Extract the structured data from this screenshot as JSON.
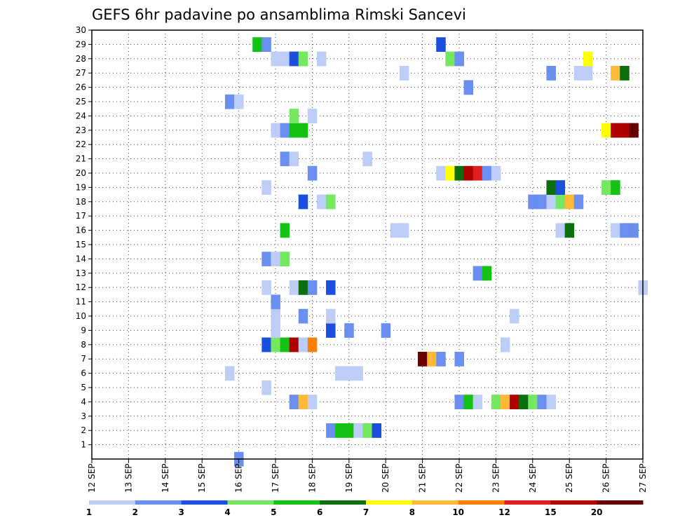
{
  "chart_data": {
    "type": "heatmap",
    "title": "GEFS 6hr padavine po ansamblima Rimski Sancevi",
    "xlabel": "",
    "ylabel": "",
    "x_ticks": [
      "12 SEP",
      "13 SEP",
      "14 SEP",
      "15 SEP",
      "16 SEP",
      "17 SEP",
      "18 SEP",
      "19 SEP",
      "20 SEP",
      "21 SEP",
      "22 SEP",
      "23 SEP",
      "24 SEP",
      "25 SEP",
      "26 SEP",
      "27 SEP"
    ],
    "xlim": [
      12,
      27
    ],
    "x_unit": "day (SEP), 6-hourly steps",
    "y_ticks": [
      1,
      2,
      3,
      4,
      5,
      6,
      7,
      8,
      9,
      10,
      11,
      12,
      13,
      14,
      15,
      16,
      17,
      18,
      19,
      20,
      21,
      22,
      23,
      24,
      25,
      26,
      27,
      28,
      29,
      30
    ],
    "ylim": [
      0,
      30
    ],
    "grid": true,
    "colorbar": {
      "placement": "bottom",
      "boundaries": [
        "1",
        "2",
        "3",
        "4",
        "5",
        "6",
        "7",
        "8",
        "10",
        "12",
        "15",
        "20",
        ""
      ],
      "colors": [
        "#bdcdf7",
        "#6a8ff0",
        "#1c4fe0",
        "#73e860",
        "#14c214",
        "#0d6e0d",
        "#ffff00",
        "#ffb838",
        "#ff8000",
        "#e02020",
        "#b00000",
        "#680000"
      ]
    },
    "cells": [
      {
        "x": 16.0,
        "y": 0,
        "c": 1
      },
      {
        "x": 18.5,
        "y": 2,
        "c": 1
      },
      {
        "x": 18.75,
        "y": 2,
        "c": 4
      },
      {
        "x": 19.0,
        "y": 2,
        "c": 4
      },
      {
        "x": 19.25,
        "y": 2,
        "c": 0
      },
      {
        "x": 19.5,
        "y": 2,
        "c": 3
      },
      {
        "x": 19.75,
        "y": 2,
        "c": 2
      },
      {
        "x": 17.5,
        "y": 4,
        "c": 1
      },
      {
        "x": 17.75,
        "y": 4,
        "c": 7
      },
      {
        "x": 18.0,
        "y": 4,
        "c": 0
      },
      {
        "x": 22.0,
        "y": 4,
        "c": 1
      },
      {
        "x": 22.25,
        "y": 4,
        "c": 4
      },
      {
        "x": 22.5,
        "y": 4,
        "c": 0
      },
      {
        "x": 23.0,
        "y": 4,
        "c": 3
      },
      {
        "x": 23.25,
        "y": 4,
        "c": 7
      },
      {
        "x": 23.5,
        "y": 4,
        "c": 10
      },
      {
        "x": 23.75,
        "y": 4,
        "c": 5
      },
      {
        "x": 24.0,
        "y": 4,
        "c": 3
      },
      {
        "x": 24.25,
        "y": 4,
        "c": 1
      },
      {
        "x": 24.5,
        "y": 4,
        "c": 0
      },
      {
        "x": 16.75,
        "y": 5,
        "c": 0
      },
      {
        "x": 15.75,
        "y": 6,
        "c": 0
      },
      {
        "x": 18.75,
        "y": 6,
        "c": 0
      },
      {
        "x": 19.0,
        "y": 6,
        "c": 0
      },
      {
        "x": 19.25,
        "y": 6,
        "c": 0
      },
      {
        "x": 21.0,
        "y": 7,
        "c": 11
      },
      {
        "x": 21.25,
        "y": 7,
        "c": 7
      },
      {
        "x": 21.5,
        "y": 7,
        "c": 1
      },
      {
        "x": 22.0,
        "y": 7,
        "c": 1
      },
      {
        "x": 16.75,
        "y": 8,
        "c": 2
      },
      {
        "x": 17.0,
        "y": 8,
        "c": 3
      },
      {
        "x": 17.25,
        "y": 8,
        "c": 4
      },
      {
        "x": 17.5,
        "y": 8,
        "c": 10
      },
      {
        "x": 17.75,
        "y": 8,
        "c": 0
      },
      {
        "x": 18.0,
        "y": 8,
        "c": 8
      },
      {
        "x": 23.25,
        "y": 8,
        "c": 0
      },
      {
        "x": 18.5,
        "y": 9,
        "c": 2
      },
      {
        "x": 19.0,
        "y": 9,
        "c": 1
      },
      {
        "x": 20.0,
        "y": 9,
        "c": 1
      },
      {
        "x": 17.0,
        "y": 9,
        "c": 0
      },
      {
        "x": 17.0,
        "y": 10,
        "c": 0
      },
      {
        "x": 17.75,
        "y": 10,
        "c": 1
      },
      {
        "x": 18.5,
        "y": 10,
        "c": 0
      },
      {
        "x": 23.5,
        "y": 10,
        "c": 0
      },
      {
        "x": 17.0,
        "y": 11,
        "c": 1
      },
      {
        "x": 16.75,
        "y": 12,
        "c": 0
      },
      {
        "x": 17.5,
        "y": 12,
        "c": 0
      },
      {
        "x": 17.75,
        "y": 12,
        "c": 5
      },
      {
        "x": 18.0,
        "y": 12,
        "c": 1
      },
      {
        "x": 18.5,
        "y": 12,
        "c": 2
      },
      {
        "x": 27.0,
        "y": 12,
        "c": 0
      },
      {
        "x": 22.5,
        "y": 13,
        "c": 1
      },
      {
        "x": 22.75,
        "y": 13,
        "c": 4
      },
      {
        "x": 16.75,
        "y": 14,
        "c": 1
      },
      {
        "x": 17.0,
        "y": 14,
        "c": 0
      },
      {
        "x": 17.25,
        "y": 14,
        "c": 3
      },
      {
        "x": 17.25,
        "y": 16,
        "c": 4
      },
      {
        "x": 20.25,
        "y": 16,
        "c": 0
      },
      {
        "x": 20.5,
        "y": 16,
        "c": 0
      },
      {
        "x": 24.75,
        "y": 16,
        "c": 0
      },
      {
        "x": 25.0,
        "y": 16,
        "c": 5
      },
      {
        "x": 26.25,
        "y": 16,
        "c": 0
      },
      {
        "x": 26.5,
        "y": 16,
        "c": 1
      },
      {
        "x": 26.75,
        "y": 16,
        "c": 1
      },
      {
        "x": 17.75,
        "y": 18,
        "c": 2
      },
      {
        "x": 18.25,
        "y": 18,
        "c": 0
      },
      {
        "x": 18.5,
        "y": 18,
        "c": 3
      },
      {
        "x": 24.0,
        "y": 18,
        "c": 1
      },
      {
        "x": 24.25,
        "y": 18,
        "c": 1
      },
      {
        "x": 24.5,
        "y": 18,
        "c": 0
      },
      {
        "x": 24.75,
        "y": 18,
        "c": 3
      },
      {
        "x": 25.0,
        "y": 18,
        "c": 7
      },
      {
        "x": 25.25,
        "y": 18,
        "c": 1
      },
      {
        "x": 16.75,
        "y": 19,
        "c": 0
      },
      {
        "x": 24.5,
        "y": 19,
        "c": 5
      },
      {
        "x": 24.75,
        "y": 19,
        "c": 2
      },
      {
        "x": 26.0,
        "y": 19,
        "c": 3
      },
      {
        "x": 26.25,
        "y": 19,
        "c": 4
      },
      {
        "x": 18.0,
        "y": 20,
        "c": 1
      },
      {
        "x": 21.5,
        "y": 20,
        "c": 0
      },
      {
        "x": 21.75,
        "y": 20,
        "c": 6
      },
      {
        "x": 22.0,
        "y": 20,
        "c": 5
      },
      {
        "x": 22.25,
        "y": 20,
        "c": 10
      },
      {
        "x": 22.5,
        "y": 20,
        "c": 9
      },
      {
        "x": 22.75,
        "y": 20,
        "c": 1
      },
      {
        "x": 23.0,
        "y": 20,
        "c": 0
      },
      {
        "x": 17.25,
        "y": 21,
        "c": 1
      },
      {
        "x": 17.5,
        "y": 21,
        "c": 0
      },
      {
        "x": 19.5,
        "y": 21,
        "c": 0
      },
      {
        "x": 17.0,
        "y": 23,
        "c": 0
      },
      {
        "x": 17.25,
        "y": 23,
        "c": 1
      },
      {
        "x": 17.5,
        "y": 23,
        "c": 4
      },
      {
        "x": 17.75,
        "y": 23,
        "c": 4
      },
      {
        "x": 26.0,
        "y": 23,
        "c": 6
      },
      {
        "x": 26.25,
        "y": 23,
        "c": 10
      },
      {
        "x": 26.5,
        "y": 23,
        "c": 10
      },
      {
        "x": 26.75,
        "y": 23,
        "c": 11
      },
      {
        "x": 17.5,
        "y": 24,
        "c": 3
      },
      {
        "x": 18.0,
        "y": 24,
        "c": 0
      },
      {
        "x": 15.75,
        "y": 25,
        "c": 1
      },
      {
        "x": 16.0,
        "y": 25,
        "c": 0
      },
      {
        "x": 22.25,
        "y": 26,
        "c": 1
      },
      {
        "x": 20.5,
        "y": 27,
        "c": 0
      },
      {
        "x": 24.5,
        "y": 27,
        "c": 1
      },
      {
        "x": 25.25,
        "y": 27,
        "c": 0
      },
      {
        "x": 25.5,
        "y": 27,
        "c": 0
      },
      {
        "x": 26.25,
        "y": 27,
        "c": 7
      },
      {
        "x": 26.5,
        "y": 27,
        "c": 5
      },
      {
        "x": 17.0,
        "y": 28,
        "c": 0
      },
      {
        "x": 17.25,
        "y": 28,
        "c": 0
      },
      {
        "x": 17.5,
        "y": 28,
        "c": 2
      },
      {
        "x": 17.75,
        "y": 28,
        "c": 3
      },
      {
        "x": 18.25,
        "y": 28,
        "c": 0
      },
      {
        "x": 21.75,
        "y": 28,
        "c": 3
      },
      {
        "x": 22.0,
        "y": 28,
        "c": 1
      },
      {
        "x": 25.5,
        "y": 28,
        "c": 6
      },
      {
        "x": 16.5,
        "y": 29,
        "c": 4
      },
      {
        "x": 16.75,
        "y": 29,
        "c": 1
      },
      {
        "x": 21.5,
        "y": 29,
        "c": 2
      }
    ]
  }
}
